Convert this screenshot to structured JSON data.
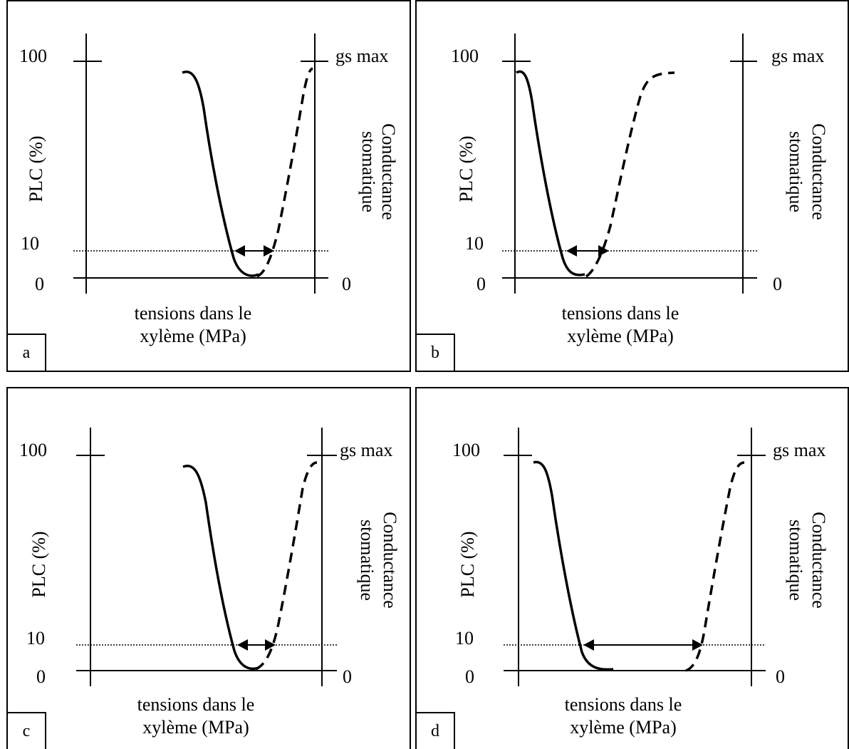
{
  "labels": {
    "y_left": "PLC (%)",
    "y_right_line1": "Conductance",
    "y_right_line2": "stomatique",
    "x_line1": "tensions dans le",
    "x_line2": "xylème (MPa)",
    "tick_100": "100",
    "tick_10": "10",
    "tick_0": "0",
    "right_top": "gs max",
    "right_zero": "0"
  },
  "panels": [
    {
      "id": "a"
    },
    {
      "id": "b"
    },
    {
      "id": "c"
    },
    {
      "id": "d"
    }
  ]
}
